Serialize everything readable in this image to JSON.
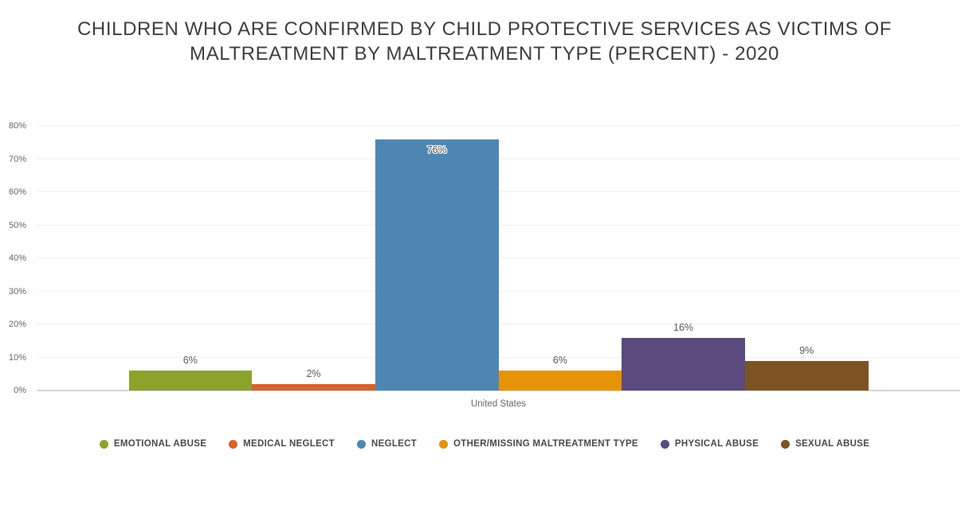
{
  "chart_data": {
    "type": "bar",
    "title": "CHILDREN WHO ARE CONFIRMED BY CHILD PROTECTIVE SERVICES AS VICTIMS OF MALTREATMENT BY MALTREATMENT TYPE (PERCENT) - 2020",
    "categories": [
      "United States"
    ],
    "series": [
      {
        "name": "EMOTIONAL ABUSE",
        "values": [
          6
        ],
        "label": "6%",
        "color": "#8BA32A",
        "label_position": "outside"
      },
      {
        "name": "MEDICAL NEGLECT",
        "values": [
          2
        ],
        "label": "2%",
        "color": "#D8622B",
        "label_position": "outside"
      },
      {
        "name": "NEGLECT",
        "values": [
          76
        ],
        "label": "76%",
        "color": "#4E86B3",
        "label_position": "inside"
      },
      {
        "name": "OTHER/MISSING MALTREATMENT TYPE",
        "values": [
          6
        ],
        "label": "6%",
        "color": "#E59306",
        "label_position": "outside"
      },
      {
        "name": "PHYSICAL ABUSE",
        "values": [
          16
        ],
        "label": "16%",
        "color": "#5A4A7D",
        "label_position": "outside"
      },
      {
        "name": "SEXUAL ABUSE",
        "values": [
          9
        ],
        "label": "9%",
        "color": "#7C5423",
        "label_position": "outside"
      }
    ],
    "xlabel": "",
    "ylabel": "",
    "ylim": [
      0,
      80
    ],
    "yticks": [
      "0%",
      "10%",
      "20%",
      "30%",
      "40%",
      "50%",
      "60%",
      "70%",
      "80%"
    ],
    "grid": true,
    "legend_position": "bottom",
    "colors": {
      "title_text": "#3E3E3E",
      "axis_text": "#666666",
      "gridline": "#F1F1F1",
      "axis_line": "#CCD7DE",
      "value_label_text": "#595959"
    }
  }
}
